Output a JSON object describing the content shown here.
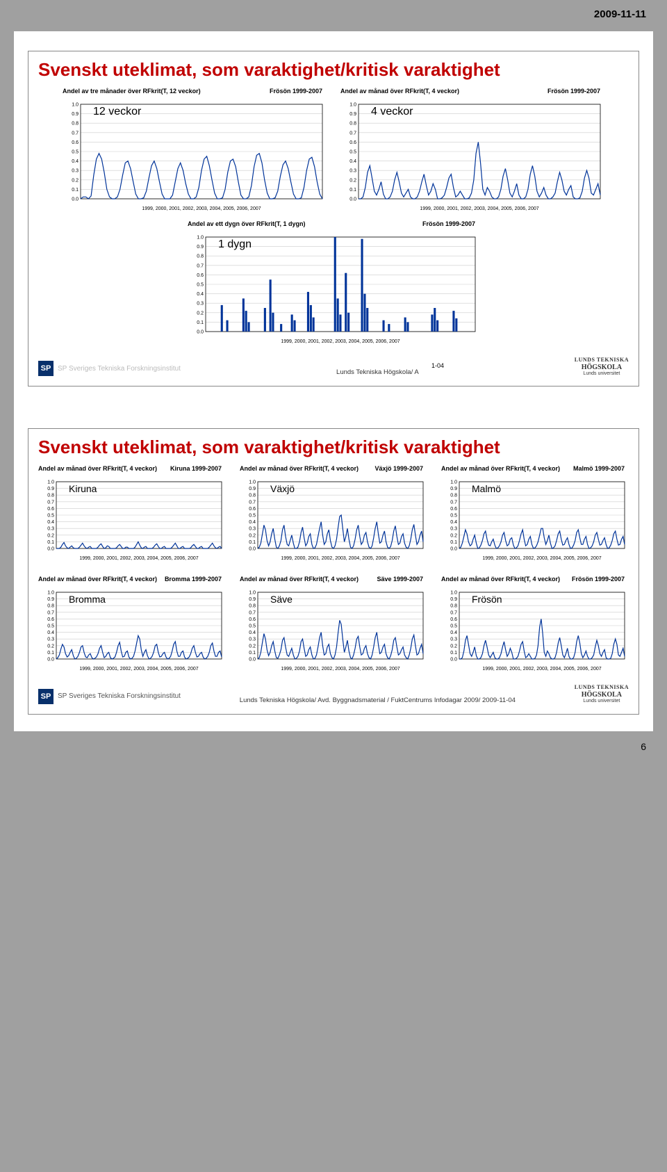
{
  "date_header": "2009-11-11",
  "page_number": "6",
  "slide1": {
    "title": "Svenskt uteklimat, som varaktighet/kritisk varaktighet",
    "footer_text": "Lunds Tekniska Högskola/ A",
    "x_caption_suffix": "1-04",
    "charts": {
      "top_left": {
        "title": "Andel av tre månader över RFkrit(T, 12 veckor)",
        "legend": "Frösön 1999-2007",
        "inner_label": "12 veckor",
        "ylim": [
          0.0,
          1.0
        ],
        "ytick_step": 0.1,
        "x_label": "1999, 2000, 2001, 2002, 2003, 2004, 2005, 2006, 2007",
        "line_color": "#003399",
        "data": [
          0,
          0.02,
          0.02,
          0,
          0.03,
          0.25,
          0.42,
          0.48,
          0.42,
          0.28,
          0.1,
          0.02,
          0,
          0,
          0.02,
          0.1,
          0.25,
          0.38,
          0.4,
          0.32,
          0.18,
          0.05,
          0,
          0,
          0.01,
          0.08,
          0.22,
          0.35,
          0.4,
          0.32,
          0.18,
          0.05,
          0,
          0,
          0,
          0.04,
          0.18,
          0.32,
          0.38,
          0.3,
          0.16,
          0.05,
          0,
          0,
          0.02,
          0.12,
          0.3,
          0.42,
          0.45,
          0.35,
          0.2,
          0.06,
          0,
          0,
          0.01,
          0.1,
          0.28,
          0.4,
          0.42,
          0.34,
          0.18,
          0.04,
          0,
          0,
          0.02,
          0.14,
          0.34,
          0.46,
          0.48,
          0.38,
          0.2,
          0.06,
          0,
          0,
          0.01,
          0.08,
          0.24,
          0.36,
          0.4,
          0.32,
          0.18,
          0.05,
          0,
          0,
          0.01,
          0.12,
          0.3,
          0.42,
          0.44,
          0.34,
          0.18,
          0.05,
          0
        ]
      },
      "top_right": {
        "title": "Andel av månad över RFkrit(T, 4 veckor)",
        "legend": "Frösön 1999-2007",
        "inner_label": "4 veckor",
        "ylim": [
          0.0,
          1.0
        ],
        "ytick_step": 0.1,
        "x_label": "1999, 2000, 2001, 2002, 2003, 2004, 2005, 2006, 2007",
        "line_color": "#003399",
        "data": [
          0,
          0,
          0.02,
          0.12,
          0.28,
          0.35,
          0.22,
          0.08,
          0.04,
          0.1,
          0.18,
          0.05,
          0,
          0,
          0.02,
          0.08,
          0.2,
          0.28,
          0.18,
          0.06,
          0.02,
          0.06,
          0.1,
          0.02,
          0,
          0,
          0.02,
          0.08,
          0.18,
          0.26,
          0.14,
          0.04,
          0.08,
          0.16,
          0.1,
          0,
          0,
          0.01,
          0.04,
          0.12,
          0.22,
          0.26,
          0.12,
          0.02,
          0.04,
          0.08,
          0.04,
          0,
          0,
          0.01,
          0.06,
          0.2,
          0.48,
          0.6,
          0.38,
          0.1,
          0.04,
          0.12,
          0.08,
          0.02,
          0,
          0,
          0.02,
          0.1,
          0.24,
          0.32,
          0.2,
          0.06,
          0.02,
          0.08,
          0.16,
          0.04,
          0,
          0,
          0.02,
          0.1,
          0.26,
          0.35,
          0.24,
          0.08,
          0.02,
          0.06,
          0.12,
          0.04,
          0,
          0,
          0.02,
          0.06,
          0.18,
          0.28,
          0.2,
          0.08,
          0.04,
          0.1,
          0.14,
          0.02,
          0,
          0,
          0.01,
          0.08,
          0.22,
          0.3,
          0.22,
          0.06,
          0.04,
          0.1,
          0.16,
          0.04
        ]
      },
      "bottom": {
        "title": "Andel av ett dygn över RFkrit(T, 1 dygn)",
        "legend": "Frösön 1999-2007",
        "inner_label": "1 dygn",
        "ylim": [
          0.0,
          1.0
        ],
        "ytick_step": 0.1,
        "x_label": "1999, 2000, 2001, 2002, 2003, 2004, 2005, 2006, 2007",
        "bar_color": "#003399",
        "bars": [
          {
            "x": 6,
            "h": 0.28
          },
          {
            "x": 8,
            "h": 0.12
          },
          {
            "x": 14,
            "h": 0.35
          },
          {
            "x": 15,
            "h": 0.22
          },
          {
            "x": 16,
            "h": 0.1
          },
          {
            "x": 22,
            "h": 0.25
          },
          {
            "x": 24,
            "h": 0.55
          },
          {
            "x": 25,
            "h": 0.2
          },
          {
            "x": 28,
            "h": 0.08
          },
          {
            "x": 32,
            "h": 0.18
          },
          {
            "x": 33,
            "h": 0.12
          },
          {
            "x": 38,
            "h": 0.42
          },
          {
            "x": 39,
            "h": 0.28
          },
          {
            "x": 40,
            "h": 0.15
          },
          {
            "x": 48,
            "h": 1.0
          },
          {
            "x": 49,
            "h": 0.35
          },
          {
            "x": 50,
            "h": 0.18
          },
          {
            "x": 52,
            "h": 0.62
          },
          {
            "x": 53,
            "h": 0.2
          },
          {
            "x": 58,
            "h": 0.98
          },
          {
            "x": 59,
            "h": 0.4
          },
          {
            "x": 60,
            "h": 0.25
          },
          {
            "x": 66,
            "h": 0.12
          },
          {
            "x": 68,
            "h": 0.08
          },
          {
            "x": 74,
            "h": 0.15
          },
          {
            "x": 75,
            "h": 0.1
          },
          {
            "x": 84,
            "h": 0.18
          },
          {
            "x": 85,
            "h": 0.25
          },
          {
            "x": 86,
            "h": 0.12
          },
          {
            "x": 92,
            "h": 0.22
          },
          {
            "x": 93,
            "h": 0.14
          }
        ]
      }
    }
  },
  "slide2": {
    "title": "Svenskt uteklimat, som varaktighet/kritisk varaktighet",
    "footer_text": "Lunds Tekniska Högskola/ Avd. Byggnadsmaterial / FuktCentrums Infodagar 2009/ 2009-11-04",
    "common": {
      "title_prefix": "Andel av månad över RFkrit(T, 4 veckor)",
      "ylim": [
        0.0,
        1.0
      ],
      "ytick_step": 0.1,
      "x_label": "1999, 2000, 2001, 2002, 2003, 2004, 2005, 2006, 2007",
      "line_color": "#003399"
    },
    "charts": [
      {
        "inner_label": "Kiruna",
        "legend": "Kiruna 1999-2007",
        "data": [
          0,
          0,
          0,
          0.02,
          0.06,
          0.09,
          0.04,
          0.01,
          0,
          0.02,
          0.04,
          0.01,
          0,
          0,
          0,
          0.02,
          0.05,
          0.08,
          0.04,
          0.01,
          0,
          0.02,
          0.03,
          0,
          0,
          0,
          0,
          0.02,
          0.05,
          0.07,
          0.03,
          0,
          0.01,
          0.04,
          0.03,
          0,
          0,
          0,
          0,
          0.01,
          0.04,
          0.06,
          0.03,
          0,
          0,
          0.02,
          0.02,
          0,
          0,
          0,
          0,
          0.02,
          0.06,
          0.1,
          0.05,
          0.01,
          0,
          0.02,
          0.03,
          0,
          0,
          0,
          0,
          0.02,
          0.05,
          0.07,
          0.03,
          0,
          0,
          0.02,
          0.03,
          0,
          0,
          0,
          0,
          0.02,
          0.05,
          0.08,
          0.04,
          0,
          0,
          0.02,
          0.03,
          0,
          0,
          0,
          0,
          0.01,
          0.04,
          0.06,
          0.03,
          0,
          0,
          0.02,
          0.03,
          0,
          0,
          0,
          0,
          0.02,
          0.05,
          0.08,
          0.04,
          0.01,
          0,
          0.02,
          0.03,
          0
        ]
      },
      {
        "inner_label": "Växjö",
        "legend": "Växjö 1999-2007",
        "data": [
          0,
          0.02,
          0.08,
          0.22,
          0.35,
          0.28,
          0.12,
          0.04,
          0.1,
          0.22,
          0.3,
          0.14,
          0.02,
          0,
          0.04,
          0.12,
          0.28,
          0.35,
          0.18,
          0.06,
          0.04,
          0.12,
          0.2,
          0.08,
          0,
          0,
          0.02,
          0.1,
          0.24,
          0.32,
          0.16,
          0.04,
          0.08,
          0.18,
          0.22,
          0.06,
          0,
          0.01,
          0.06,
          0.18,
          0.3,
          0.4,
          0.2,
          0.06,
          0.1,
          0.22,
          0.28,
          0.12,
          0.02,
          0,
          0.04,
          0.14,
          0.32,
          0.48,
          0.5,
          0.3,
          0.1,
          0.18,
          0.3,
          0.14,
          0.02,
          0,
          0.04,
          0.14,
          0.28,
          0.35,
          0.18,
          0.06,
          0.1,
          0.2,
          0.24,
          0.1,
          0.02,
          0,
          0.04,
          0.16,
          0.3,
          0.4,
          0.22,
          0.08,
          0.1,
          0.2,
          0.26,
          0.1,
          0.02,
          0,
          0.03,
          0.12,
          0.26,
          0.34,
          0.18,
          0.06,
          0.08,
          0.18,
          0.22,
          0.08,
          0.02,
          0,
          0.04,
          0.14,
          0.28,
          0.36,
          0.2,
          0.06,
          0.1,
          0.2,
          0.26,
          0.1
        ]
      },
      {
        "inner_label": "Malmö",
        "legend": "Malmö 1999-2007",
        "data": [
          0,
          0.02,
          0.08,
          0.18,
          0.28,
          0.22,
          0.1,
          0.04,
          0.06,
          0.14,
          0.2,
          0.08,
          0,
          0.01,
          0.05,
          0.12,
          0.22,
          0.26,
          0.14,
          0.05,
          0.04,
          0.1,
          0.14,
          0.05,
          0,
          0.01,
          0.04,
          0.1,
          0.2,
          0.24,
          0.12,
          0.04,
          0.06,
          0.14,
          0.16,
          0.05,
          0,
          0.01,
          0.04,
          0.12,
          0.22,
          0.28,
          0.14,
          0.04,
          0.06,
          0.14,
          0.18,
          0.06,
          0,
          0.01,
          0.04,
          0.1,
          0.2,
          0.3,
          0.3,
          0.16,
          0.06,
          0.12,
          0.2,
          0.08,
          0,
          0.01,
          0.04,
          0.12,
          0.22,
          0.26,
          0.14,
          0.05,
          0.06,
          0.12,
          0.16,
          0.06,
          0,
          0.01,
          0.05,
          0.12,
          0.24,
          0.28,
          0.16,
          0.06,
          0.06,
          0.14,
          0.18,
          0.06,
          0,
          0.01,
          0.04,
          0.1,
          0.2,
          0.24,
          0.14,
          0.05,
          0.06,
          0.12,
          0.16,
          0.06,
          0,
          0.01,
          0.05,
          0.12,
          0.22,
          0.26,
          0.14,
          0.05,
          0.06,
          0.14,
          0.18,
          0.06
        ]
      },
      {
        "inner_label": "Bromma",
        "legend": "Bromma 1999-2007",
        "data": [
          0,
          0.02,
          0.06,
          0.15,
          0.22,
          0.18,
          0.08,
          0.03,
          0.05,
          0.1,
          0.14,
          0.05,
          0,
          0.01,
          0.04,
          0.1,
          0.18,
          0.2,
          0.1,
          0.03,
          0.02,
          0.06,
          0.08,
          0.02,
          0,
          0.01,
          0.03,
          0.08,
          0.16,
          0.2,
          0.1,
          0.02,
          0.04,
          0.08,
          0.1,
          0.02,
          0,
          0.01,
          0.03,
          0.1,
          0.2,
          0.25,
          0.12,
          0.03,
          0.04,
          0.1,
          0.12,
          0.03,
          0,
          0.01,
          0.04,
          0.12,
          0.24,
          0.35,
          0.3,
          0.14,
          0.04,
          0.1,
          0.14,
          0.05,
          0,
          0.01,
          0.04,
          0.1,
          0.2,
          0.22,
          0.1,
          0.03,
          0.04,
          0.08,
          0.1,
          0.03,
          0,
          0.01,
          0.04,
          0.12,
          0.22,
          0.26,
          0.12,
          0.04,
          0.04,
          0.1,
          0.12,
          0.03,
          0,
          0.01,
          0.03,
          0.08,
          0.16,
          0.2,
          0.1,
          0.03,
          0.04,
          0.08,
          0.1,
          0.03,
          0,
          0.01,
          0.04,
          0.1,
          0.2,
          0.24,
          0.12,
          0.04,
          0.04,
          0.1,
          0.12,
          0.03
        ]
      },
      {
        "inner_label": "Säve",
        "legend": "Säve 1999-2007",
        "data": [
          0,
          0.02,
          0.1,
          0.25,
          0.38,
          0.3,
          0.14,
          0.05,
          0.1,
          0.2,
          0.26,
          0.12,
          0.02,
          0.01,
          0.06,
          0.14,
          0.28,
          0.32,
          0.18,
          0.06,
          0.04,
          0.1,
          0.16,
          0.06,
          0,
          0.01,
          0.04,
          0.12,
          0.26,
          0.3,
          0.16,
          0.04,
          0.06,
          0.14,
          0.18,
          0.06,
          0,
          0.01,
          0.06,
          0.18,
          0.32,
          0.4,
          0.2,
          0.06,
          0.08,
          0.18,
          0.22,
          0.08,
          0.02,
          0,
          0.06,
          0.18,
          0.4,
          0.58,
          0.52,
          0.3,
          0.1,
          0.18,
          0.28,
          0.12,
          0.02,
          0,
          0.06,
          0.16,
          0.3,
          0.34,
          0.18,
          0.06,
          0.08,
          0.16,
          0.2,
          0.08,
          0.02,
          0,
          0.06,
          0.18,
          0.32,
          0.4,
          0.22,
          0.08,
          0.1,
          0.18,
          0.22,
          0.08,
          0.02,
          0,
          0.05,
          0.14,
          0.28,
          0.32,
          0.18,
          0.06,
          0.08,
          0.14,
          0.18,
          0.06,
          0.02,
          0,
          0.06,
          0.16,
          0.3,
          0.36,
          0.2,
          0.06,
          0.08,
          0.16,
          0.22,
          0.08
        ]
      },
      {
        "inner_label": "Frösön",
        "legend": "Frösön 1999-2007",
        "data": [
          0,
          0,
          0.02,
          0.12,
          0.28,
          0.35,
          0.22,
          0.08,
          0.04,
          0.1,
          0.18,
          0.05,
          0,
          0,
          0.02,
          0.08,
          0.2,
          0.28,
          0.18,
          0.06,
          0.02,
          0.06,
          0.1,
          0.02,
          0,
          0,
          0.02,
          0.08,
          0.18,
          0.26,
          0.14,
          0.04,
          0.08,
          0.16,
          0.1,
          0,
          0,
          0.01,
          0.04,
          0.12,
          0.22,
          0.26,
          0.12,
          0.02,
          0.04,
          0.08,
          0.04,
          0,
          0,
          0.01,
          0.06,
          0.2,
          0.48,
          0.6,
          0.38,
          0.1,
          0.04,
          0.12,
          0.08,
          0.02,
          0,
          0,
          0.02,
          0.1,
          0.24,
          0.32,
          0.2,
          0.06,
          0.02,
          0.08,
          0.16,
          0.04,
          0,
          0,
          0.02,
          0.1,
          0.26,
          0.35,
          0.24,
          0.08,
          0.02,
          0.06,
          0.12,
          0.04,
          0,
          0,
          0.02,
          0.06,
          0.18,
          0.28,
          0.2,
          0.08,
          0.04,
          0.1,
          0.14,
          0.02,
          0,
          0,
          0.01,
          0.08,
          0.22,
          0.3,
          0.22,
          0.06,
          0.04,
          0.1,
          0.16,
          0.04
        ]
      }
    ]
  },
  "logos": {
    "sp_text": "SP Sveriges Tekniska Forskningsinstitut",
    "sp_short": "SP",
    "lund_l1": "LUNDS TEKNISKA",
    "lund_l2": "HÖGSKOLA",
    "lund_l3": "Lunds universitet"
  }
}
